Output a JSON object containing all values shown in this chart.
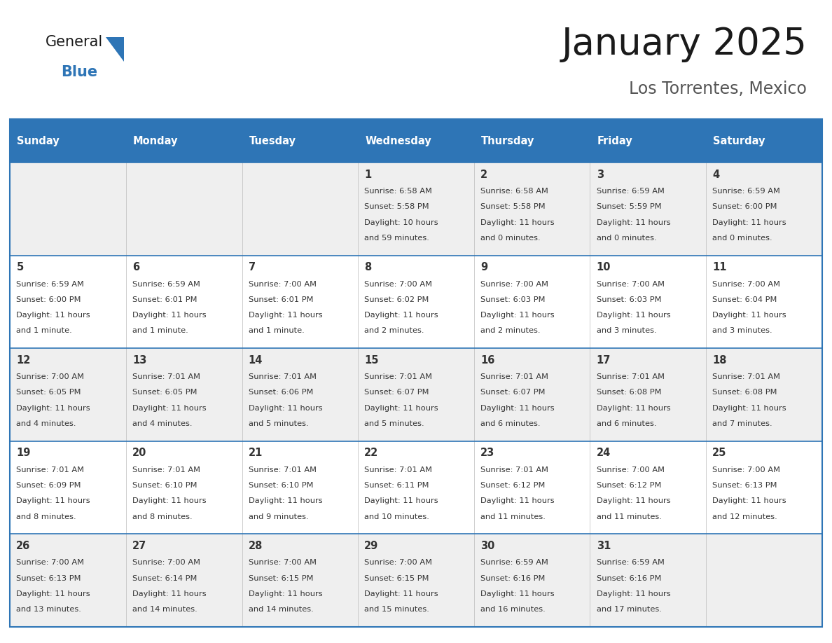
{
  "title": "January 2025",
  "subtitle": "Los Torrentes, Mexico",
  "header_color": "#2E75B6",
  "header_text_color": "#FFFFFF",
  "day_names": [
    "Sunday",
    "Monday",
    "Tuesday",
    "Wednesday",
    "Thursday",
    "Friday",
    "Saturday"
  ],
  "row_bg_colors": [
    "#EFEFEF",
    "#FFFFFF"
  ],
  "border_color": "#2E75B6",
  "text_color": "#333333",
  "days": [
    {
      "day": 1,
      "col": 3,
      "row": 0,
      "sunrise": "6:58 AM",
      "sunset": "5:58 PM",
      "daylight_hours": 10,
      "daylight_minutes": 59
    },
    {
      "day": 2,
      "col": 4,
      "row": 0,
      "sunrise": "6:58 AM",
      "sunset": "5:58 PM",
      "daylight_hours": 11,
      "daylight_minutes": 0
    },
    {
      "day": 3,
      "col": 5,
      "row": 0,
      "sunrise": "6:59 AM",
      "sunset": "5:59 PM",
      "daylight_hours": 11,
      "daylight_minutes": 0
    },
    {
      "day": 4,
      "col": 6,
      "row": 0,
      "sunrise": "6:59 AM",
      "sunset": "6:00 PM",
      "daylight_hours": 11,
      "daylight_minutes": 0
    },
    {
      "day": 5,
      "col": 0,
      "row": 1,
      "sunrise": "6:59 AM",
      "sunset": "6:00 PM",
      "daylight_hours": 11,
      "daylight_minutes": 1
    },
    {
      "day": 6,
      "col": 1,
      "row": 1,
      "sunrise": "6:59 AM",
      "sunset": "6:01 PM",
      "daylight_hours": 11,
      "daylight_minutes": 1
    },
    {
      "day": 7,
      "col": 2,
      "row": 1,
      "sunrise": "7:00 AM",
      "sunset": "6:01 PM",
      "daylight_hours": 11,
      "daylight_minutes": 1
    },
    {
      "day": 8,
      "col": 3,
      "row": 1,
      "sunrise": "7:00 AM",
      "sunset": "6:02 PM",
      "daylight_hours": 11,
      "daylight_minutes": 2
    },
    {
      "day": 9,
      "col": 4,
      "row": 1,
      "sunrise": "7:00 AM",
      "sunset": "6:03 PM",
      "daylight_hours": 11,
      "daylight_minutes": 2
    },
    {
      "day": 10,
      "col": 5,
      "row": 1,
      "sunrise": "7:00 AM",
      "sunset": "6:03 PM",
      "daylight_hours": 11,
      "daylight_minutes": 3
    },
    {
      "day": 11,
      "col": 6,
      "row": 1,
      "sunrise": "7:00 AM",
      "sunset": "6:04 PM",
      "daylight_hours": 11,
      "daylight_minutes": 3
    },
    {
      "day": 12,
      "col": 0,
      "row": 2,
      "sunrise": "7:00 AM",
      "sunset": "6:05 PM",
      "daylight_hours": 11,
      "daylight_minutes": 4
    },
    {
      "day": 13,
      "col": 1,
      "row": 2,
      "sunrise": "7:01 AM",
      "sunset": "6:05 PM",
      "daylight_hours": 11,
      "daylight_minutes": 4
    },
    {
      "day": 14,
      "col": 2,
      "row": 2,
      "sunrise": "7:01 AM",
      "sunset": "6:06 PM",
      "daylight_hours": 11,
      "daylight_minutes": 5
    },
    {
      "day": 15,
      "col": 3,
      "row": 2,
      "sunrise": "7:01 AM",
      "sunset": "6:07 PM",
      "daylight_hours": 11,
      "daylight_minutes": 5
    },
    {
      "day": 16,
      "col": 4,
      "row": 2,
      "sunrise": "7:01 AM",
      "sunset": "6:07 PM",
      "daylight_hours": 11,
      "daylight_minutes": 6
    },
    {
      "day": 17,
      "col": 5,
      "row": 2,
      "sunrise": "7:01 AM",
      "sunset": "6:08 PM",
      "daylight_hours": 11,
      "daylight_minutes": 6
    },
    {
      "day": 18,
      "col": 6,
      "row": 2,
      "sunrise": "7:01 AM",
      "sunset": "6:08 PM",
      "daylight_hours": 11,
      "daylight_minutes": 7
    },
    {
      "day": 19,
      "col": 0,
      "row": 3,
      "sunrise": "7:01 AM",
      "sunset": "6:09 PM",
      "daylight_hours": 11,
      "daylight_minutes": 8
    },
    {
      "day": 20,
      "col": 1,
      "row": 3,
      "sunrise": "7:01 AM",
      "sunset": "6:10 PM",
      "daylight_hours": 11,
      "daylight_minutes": 8
    },
    {
      "day": 21,
      "col": 2,
      "row": 3,
      "sunrise": "7:01 AM",
      "sunset": "6:10 PM",
      "daylight_hours": 11,
      "daylight_minutes": 9
    },
    {
      "day": 22,
      "col": 3,
      "row": 3,
      "sunrise": "7:01 AM",
      "sunset": "6:11 PM",
      "daylight_hours": 11,
      "daylight_minutes": 10
    },
    {
      "day": 23,
      "col": 4,
      "row": 3,
      "sunrise": "7:01 AM",
      "sunset": "6:12 PM",
      "daylight_hours": 11,
      "daylight_minutes": 11
    },
    {
      "day": 24,
      "col": 5,
      "row": 3,
      "sunrise": "7:00 AM",
      "sunset": "6:12 PM",
      "daylight_hours": 11,
      "daylight_minutes": 11
    },
    {
      "day": 25,
      "col": 6,
      "row": 3,
      "sunrise": "7:00 AM",
      "sunset": "6:13 PM",
      "daylight_hours": 11,
      "daylight_minutes": 12
    },
    {
      "day": 26,
      "col": 0,
      "row": 4,
      "sunrise": "7:00 AM",
      "sunset": "6:13 PM",
      "daylight_hours": 11,
      "daylight_minutes": 13
    },
    {
      "day": 27,
      "col": 1,
      "row": 4,
      "sunrise": "7:00 AM",
      "sunset": "6:14 PM",
      "daylight_hours": 11,
      "daylight_minutes": 14
    },
    {
      "day": 28,
      "col": 2,
      "row": 4,
      "sunrise": "7:00 AM",
      "sunset": "6:15 PM",
      "daylight_hours": 11,
      "daylight_minutes": 14
    },
    {
      "day": 29,
      "col": 3,
      "row": 4,
      "sunrise": "7:00 AM",
      "sunset": "6:15 PM",
      "daylight_hours": 11,
      "daylight_minutes": 15
    },
    {
      "day": 30,
      "col": 4,
      "row": 4,
      "sunrise": "6:59 AM",
      "sunset": "6:16 PM",
      "daylight_hours": 11,
      "daylight_minutes": 16
    },
    {
      "day": 31,
      "col": 5,
      "row": 4,
      "sunrise": "6:59 AM",
      "sunset": "6:16 PM",
      "daylight_hours": 11,
      "daylight_minutes": 17
    }
  ]
}
